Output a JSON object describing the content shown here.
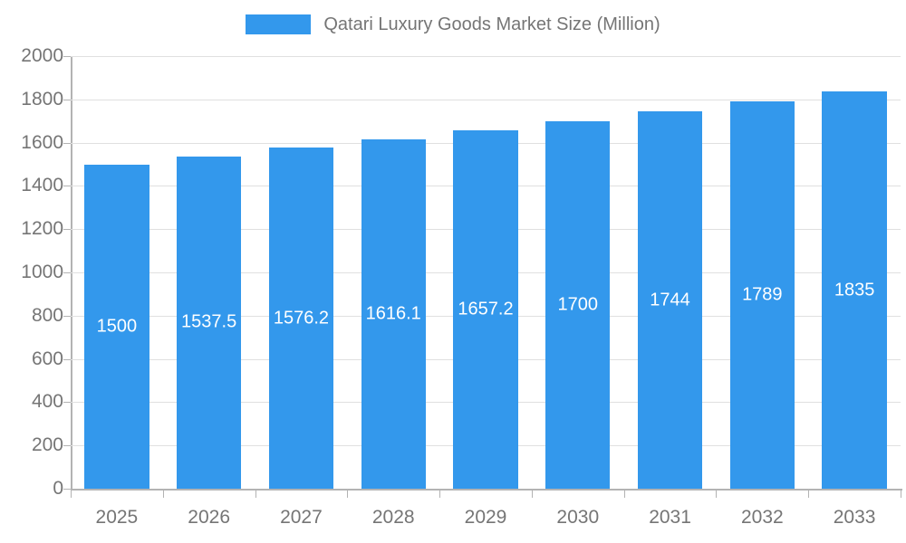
{
  "legend": {
    "label": "Qatari Luxury Goods Market Size (Million)"
  },
  "colors": {
    "bar": "#3398EC",
    "grid": "#e0e0e0",
    "axis": "#b3b3b3",
    "tick_text": "#757575",
    "bar_label_text": "#ffffff"
  },
  "chart_data": {
    "type": "bar",
    "title": "Qatari Luxury Goods Market Size (Million)",
    "categories": [
      "2025",
      "2026",
      "2027",
      "2028",
      "2029",
      "2030",
      "2031",
      "2032",
      "2033"
    ],
    "values": [
      1500,
      1537.5,
      1576.2,
      1616.1,
      1657.2,
      1700,
      1744,
      1789,
      1835
    ],
    "bar_labels": [
      "1500",
      "1537.5",
      "1576.2",
      "1616.1",
      "1657.2",
      "1700",
      "1744",
      "1789",
      "1835"
    ],
    "xlabel": "",
    "ylabel": "",
    "ylim": [
      0,
      2000
    ],
    "yticks": [
      0,
      200,
      400,
      600,
      800,
      1000,
      1200,
      1400,
      1600,
      1800,
      2000
    ],
    "grid": true,
    "legend_position": "top",
    "bar_value_labels": "inside-middle"
  }
}
